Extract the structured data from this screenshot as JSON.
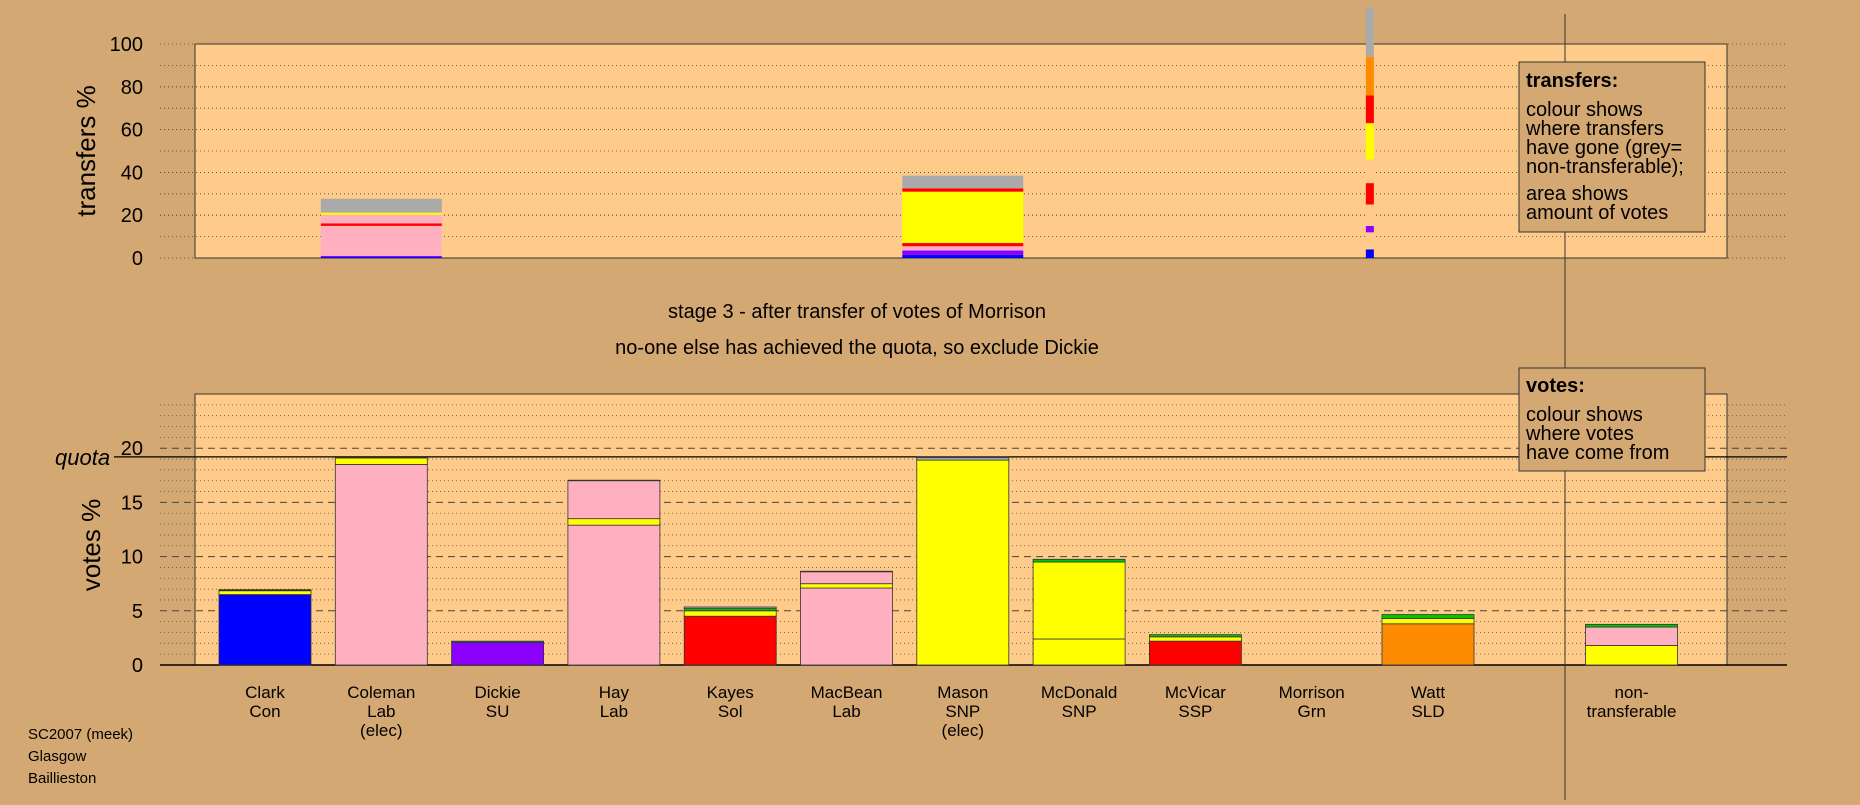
{
  "colors": {
    "page_bg": "#d4a872",
    "plot_bg": "#fecb8a",
    "Con": "#0000ff",
    "Lab": "#ffb0c0",
    "SU": "#8b00ff",
    "Sol": "#ff0000",
    "SNP": "#ffff00",
    "SSP": "#ff0000",
    "Grn": "#00c800",
    "SLD": "#ff8c00",
    "nontransferable": "#aaaaaa"
  },
  "stage_text": "stage 3 - after transfer of votes of Morrison",
  "message": "no-one else has achieved the quota, so exclude Dickie",
  "source": {
    "line1": "SC2007 (meek)",
    "line2": "Glasgow",
    "line3": "Baillieston"
  },
  "legends": {
    "transfers": {
      "title": "transfers:",
      "lines": [
        "colour shows",
        "where transfers",
        "have gone (grey=",
        "non-transferable);",
        "area shows",
        "amount of votes"
      ]
    },
    "votes": {
      "title": "votes:",
      "lines": [
        "colour shows",
        "where votes",
        "have come from"
      ]
    }
  },
  "chart_data": [
    {
      "type": "bar",
      "name": "transfers",
      "ylabel": "transfers %",
      "ylim": [
        0,
        100
      ],
      "yticks": [
        0,
        20,
        40,
        60,
        80,
        100
      ],
      "grid": true,
      "bars": [
        {
          "column": 1,
          "width_share": 0.2,
          "segments": [
            {
              "color": "Con",
              "value": 0.5
            },
            {
              "color": "SU",
              "value": 0.5
            },
            {
              "color": "Lab",
              "value": 14
            },
            {
              "color": "Sol",
              "value": 1.2
            },
            {
              "color": "Lab",
              "value": 4
            },
            {
              "color": "SNP",
              "value": 1
            },
            {
              "color": "nontransferable",
              "value": 6.5
            }
          ]
        },
        {
          "column": 6,
          "width_share": 0.2,
          "segments": [
            {
              "color": "Con",
              "value": 1.5
            },
            {
              "color": "SU",
              "value": 2
            },
            {
              "color": "Lab",
              "value": 2
            },
            {
              "color": "Sol",
              "value": 1.5
            },
            {
              "color": "SNP",
              "value": 24
            },
            {
              "color": "Sol",
              "value": 1.5
            },
            {
              "color": "nontransferable",
              "value": 6
            }
          ]
        },
        {
          "column": 9.5,
          "width_share": 0.01,
          "segments": [
            {
              "color": "Con",
              "value": 4
            },
            {
              "color": "plot_bg",
              "value": 8
            },
            {
              "color": "SU",
              "value": 3
            },
            {
              "color": "plot_bg",
              "value": 10
            },
            {
              "color": "Sol",
              "value": 10
            },
            {
              "color": "plot_bg",
              "value": 11
            },
            {
              "color": "SNP",
              "value": 17
            },
            {
              "color": "Sol",
              "value": 13
            },
            {
              "color": "SLD",
              "value": 18
            },
            {
              "color": "nontransferable",
              "value": 23
            }
          ]
        }
      ]
    },
    {
      "type": "bar",
      "name": "votes",
      "ylabel": "votes %",
      "ylim": [
        0,
        25
      ],
      "yticks": [
        0,
        5,
        10,
        15,
        20
      ],
      "quota": 19.2,
      "quota_label": "quota",
      "grid": true,
      "categories": [
        "Clark\nCon",
        "Coleman\nLab\n(elec)",
        "Dickie\nSU",
        "Hay\nLab",
        "Kayes\nSol",
        "MacBean\nLab",
        "Mason\nSNP\n(elec)",
        "McDonald\nSNP",
        "McVicar\nSSP",
        "Morrison\nGrn",
        "Watt\nSLD",
        "non-\ntransferable"
      ],
      "bars": [
        {
          "column": 0,
          "segments": [
            {
              "color": "Con",
              "value": 6.5
            },
            {
              "color": "SNP",
              "value": 0.35
            },
            {
              "color": "Sol",
              "value": 0.05
            },
            {
              "color": "Grn",
              "value": 0.05
            }
          ]
        },
        {
          "column": 1,
          "segments": [
            {
              "color": "Lab",
              "value": 18.5
            },
            {
              "color": "SNP",
              "value": 0.6
            },
            {
              "color": "Grn",
              "value": 0.05
            }
          ]
        },
        {
          "column": 2,
          "segments": [
            {
              "color": "SU",
              "value": 2.1
            },
            {
              "color": "Grn",
              "value": 0.1
            }
          ]
        },
        {
          "column": 3,
          "segments": [
            {
              "color": "Lab",
              "value": 12.9
            },
            {
              "color": "SNP",
              "value": 0.6
            },
            {
              "color": "Lab",
              "value": 3.5
            },
            {
              "color": "Grn",
              "value": 0.05
            }
          ]
        },
        {
          "column": 4,
          "segments": [
            {
              "color": "Sol",
              "value": 4.5
            },
            {
              "color": "SNP",
              "value": 0.5
            },
            {
              "color": "Grn",
              "value": 0.2
            },
            {
              "color": "nontransferable",
              "value": 0.15
            }
          ]
        },
        {
          "column": 5,
          "segments": [
            {
              "color": "Lab",
              "value": 7.1
            },
            {
              "color": "SNP",
              "value": 0.4
            },
            {
              "color": "Lab",
              "value": 1.1
            },
            {
              "color": "Grn",
              "value": 0.05
            }
          ]
        },
        {
          "column": 6,
          "segments": [
            {
              "color": "SNP",
              "value": 18.9
            },
            {
              "color": "nontransferable",
              "value": 0.25
            },
            {
              "color": "Grn",
              "value": 0.05
            }
          ]
        },
        {
          "column": 7,
          "segments": [
            {
              "color": "SNP",
              "value": 2.4
            },
            {
              "color": "SNP",
              "value": 7.1
            },
            {
              "color": "Grn",
              "value": 0.25
            }
          ]
        },
        {
          "column": 8,
          "segments": [
            {
              "color": "Sol",
              "value": 2.2
            },
            {
              "color": "SNP",
              "value": 0.4
            },
            {
              "color": "Grn",
              "value": 0.2
            }
          ]
        },
        {
          "column": 9,
          "segments": []
        },
        {
          "column": 10,
          "segments": [
            {
              "color": "SLD",
              "value": 3.8
            },
            {
              "color": "SNP",
              "value": 0.5
            },
            {
              "color": "Grn",
              "value": 0.35
            }
          ]
        },
        {
          "column": 11.75,
          "segments": [
            {
              "color": "SNP",
              "value": 1.8
            },
            {
              "color": "Lab",
              "value": 1.7
            },
            {
              "color": "Grn",
              "value": 0.25
            }
          ]
        }
      ]
    }
  ]
}
